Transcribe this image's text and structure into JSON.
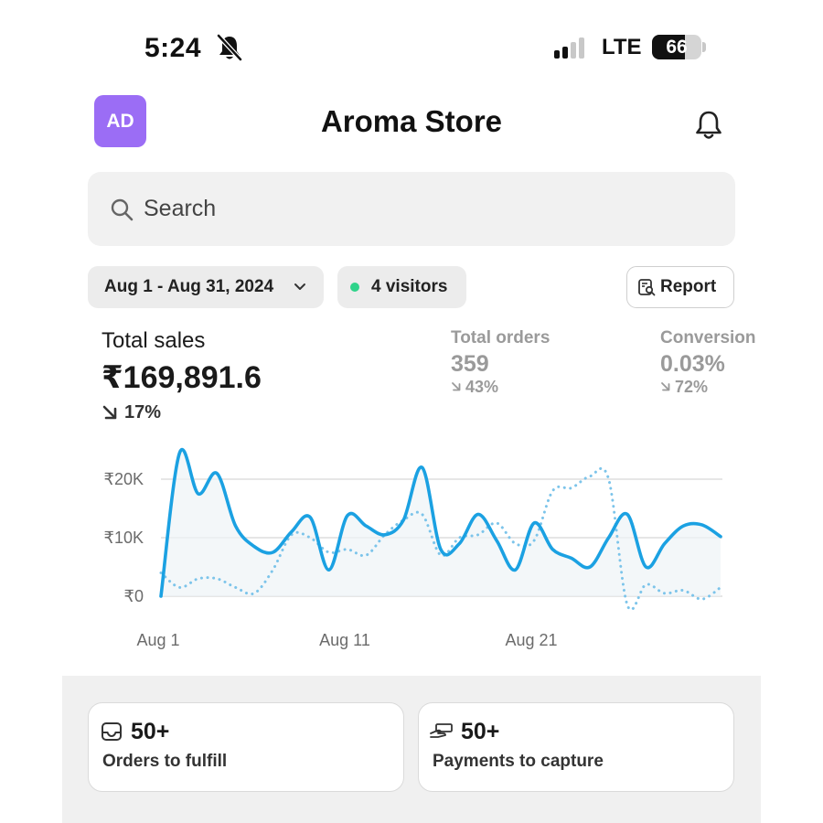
{
  "status_bar": {
    "time": "5:24",
    "network": "LTE",
    "battery": "66",
    "icons": [
      "bell-slash-icon",
      "signal-bars-icon",
      "battery-icon"
    ]
  },
  "header": {
    "avatar_initials": "AD",
    "avatar_color": "#9b6df5",
    "title": "Aroma Store",
    "icons": [
      "bell-icon"
    ]
  },
  "search": {
    "placeholder": "Search",
    "icon": "search-icon"
  },
  "filters": {
    "date_range": "Aug 1 - Aug 31, 2024",
    "visitors": "4 visitors",
    "visitors_dot_color": "#2fd38a",
    "report_label": "Report"
  },
  "metrics": {
    "total_sales": {
      "title": "Total sales",
      "value": "₹169,891.6",
      "change": "17%",
      "direction": "down"
    },
    "total_orders": {
      "title": "Total orders",
      "value": "359",
      "change": "43%",
      "direction": "down"
    },
    "conversion": {
      "title": "Conversion",
      "value": "0.03%",
      "change": "72%",
      "direction": "down"
    }
  },
  "chart_data": {
    "type": "line",
    "x": [
      1,
      2,
      3,
      4,
      5,
      6,
      7,
      8,
      9,
      10,
      11,
      12,
      13,
      14,
      15,
      16,
      17,
      18,
      19,
      20,
      21,
      22,
      23,
      24,
      25,
      26,
      27,
      28,
      29,
      30,
      31
    ],
    "x_tick_labels": [
      "Aug 1",
      "Aug 11",
      "Aug 21"
    ],
    "x_tick_values": [
      1,
      11,
      21
    ],
    "y_tick_labels": [
      "₹0",
      "₹10K",
      "₹20K"
    ],
    "y_tick_values": [
      0,
      10000,
      20000
    ],
    "ylim": [
      0,
      25000
    ],
    "grid": true,
    "series": [
      {
        "style": "solid",
        "color": "#1ba1e2",
        "values": [
          0,
          24500,
          17500,
          21000,
          12000,
          8500,
          7500,
          11000,
          13500,
          4500,
          13800,
          12000,
          10500,
          13000,
          22000,
          8000,
          9000,
          14000,
          9500,
          4500,
          12500,
          8000,
          6500,
          5000,
          10000,
          14000,
          5000,
          9000,
          12000,
          12200,
          10200
        ]
      },
      {
        "style": "dotted",
        "color": "#7cc4ea",
        "values": [
          4000,
          1500,
          3000,
          3000,
          1500,
          500,
          4500,
          10500,
          10000,
          7500,
          8000,
          7000,
          10500,
          13000,
          14000,
          7000,
          10000,
          10500,
          12500,
          9000,
          9500,
          18000,
          18500,
          20500,
          20000,
          -1500,
          2000,
          500,
          1000,
          -500,
          1500
        ]
      }
    ]
  },
  "cards": [
    {
      "icon": "inbox-tray-icon",
      "count": "50+",
      "label": "Orders to fulfill"
    },
    {
      "icon": "hand-card-icon",
      "count": "50+",
      "label": "Payments to capture"
    }
  ]
}
